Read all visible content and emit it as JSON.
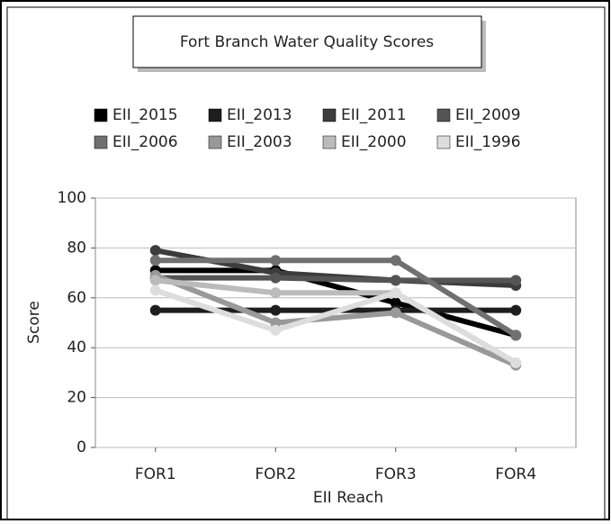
{
  "chart_data": {
    "type": "line",
    "title": "Fort Branch Water Quality Scores",
    "x_label": "EII Reach",
    "y_label": "Score",
    "categories": [
      "FOR1",
      "FOR2",
      "FOR3",
      "FOR4"
    ],
    "ylim": [
      0,
      100
    ],
    "yticks": [
      0,
      20,
      40,
      60,
      80,
      100
    ],
    "grid": true,
    "series": [
      {
        "name": "EII_2015",
        "color": "#000000",
        "values": [
          71,
          71,
          58,
          45
        ]
      },
      {
        "name": "EII_2013",
        "color": "#1e1e1e",
        "values": [
          55,
          55,
          55,
          55
        ]
      },
      {
        "name": "EII_2011",
        "color": "#3c3c3c",
        "values": [
          79,
          70,
          67,
          65
        ]
      },
      {
        "name": "EII_2009",
        "color": "#545454",
        "values": [
          68,
          68,
          67,
          67
        ]
      },
      {
        "name": "EII_2006",
        "color": "#707070",
        "values": [
          75,
          75,
          75,
          45
        ]
      },
      {
        "name": "EII_2003",
        "color": "#999999",
        "values": [
          69,
          50,
          54,
          33
        ]
      },
      {
        "name": "EII_2000",
        "color": "#bbbbbb",
        "values": [
          67,
          62,
          62,
          34
        ]
      },
      {
        "name": "EII_1996",
        "color": "#dddddd",
        "values": [
          63,
          47,
          62,
          34
        ]
      }
    ]
  }
}
